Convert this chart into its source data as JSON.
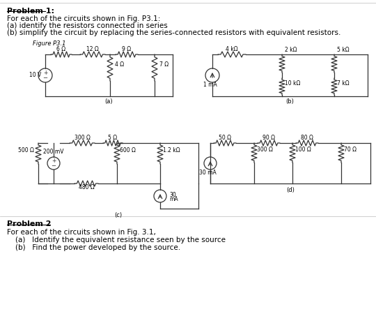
{
  "title_text": "Problem 1:",
  "line1": "For each of the circuits shown in Fig. P3.1:",
  "line2": "(a) identify the resistors connected in series",
  "line3": "(b) simplify the circuit by replacing the series-connected resistors with equivalent resistors.",
  "figure_label": "Figure P3.1",
  "problem2_title": "Problem 2",
  "problem2_line1": "For each of the circuits shown in Fig. 3.1,",
  "problem2_bullet1": "(a)   Identify the equivalent resistance seen by the source",
  "problem2_bullet2": "(b)   Find the power developed by the source.",
  "circuit_color": "#333333"
}
